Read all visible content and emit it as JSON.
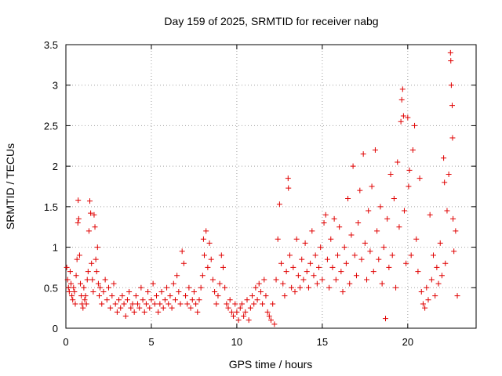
{
  "chart_data": {
    "type": "scatter",
    "title": "Day 159 of 2025, SRMTID for receiver nabg",
    "xlabel": "GPS time / hours",
    "ylabel": "SRMTID / TECUs",
    "xlim": [
      0,
      24
    ],
    "ylim": [
      0,
      3.5
    ],
    "xticks": [
      0,
      5,
      10,
      15,
      20
    ],
    "yticks": [
      0,
      0.5,
      1,
      1.5,
      2,
      2.5,
      3,
      3.5
    ],
    "xtick_labels": [
      "0",
      "5",
      "10",
      "15",
      "20"
    ],
    "ytick_labels": [
      "0",
      "0.5",
      "1",
      "1.5",
      "2",
      "2.5",
      "3",
      "3.5"
    ],
    "grid": true,
    "marker": "+",
    "series": [
      {
        "name": "SRMTID",
        "color": "#e00000",
        "points": [
          [
            0.05,
            0.75
          ],
          [
            0.1,
            0.6
          ],
          [
            0.15,
            0.5
          ],
          [
            0.2,
            0.45
          ],
          [
            0.25,
            0.7
          ],
          [
            0.3,
            0.55
          ],
          [
            0.35,
            0.4
          ],
          [
            0.4,
            0.35
          ],
          [
            0.45,
            0.5
          ],
          [
            0.5,
            0.45
          ],
          [
            0.55,
            0.3
          ],
          [
            0.6,
            0.65
          ],
          [
            0.65,
            0.85
          ],
          [
            0.7,
            1.3
          ],
          [
            0.72,
            1.58
          ],
          [
            0.75,
            1.35
          ],
          [
            0.8,
            0.9
          ],
          [
            0.85,
            0.55
          ],
          [
            0.9,
            0.4
          ],
          [
            0.95,
            0.3
          ],
          [
            1.0,
            0.25
          ],
          [
            1.05,
            0.5
          ],
          [
            1.1,
            0.35
          ],
          [
            1.15,
            0.4
          ],
          [
            1.2,
            0.3
          ],
          [
            1.25,
            0.6
          ],
          [
            1.3,
            0.7
          ],
          [
            1.35,
            1.2
          ],
          [
            1.4,
            1.57
          ],
          [
            1.45,
            1.42
          ],
          [
            1.5,
            0.8
          ],
          [
            1.55,
            0.6
          ],
          [
            1.6,
            0.45
          ],
          [
            1.65,
            1.4
          ],
          [
            1.7,
            1.25
          ],
          [
            1.75,
            0.85
          ],
          [
            1.8,
            0.7
          ],
          [
            1.85,
            1.0
          ],
          [
            1.9,
            0.55
          ],
          [
            1.95,
            0.4
          ],
          [
            2.0,
            0.5
          ],
          [
            2.1,
            0.3
          ],
          [
            2.2,
            0.45
          ],
          [
            2.3,
            0.6
          ],
          [
            2.4,
            0.35
          ],
          [
            2.5,
            0.5
          ],
          [
            2.6,
            0.25
          ],
          [
            2.7,
            0.4
          ],
          [
            2.8,
            0.55
          ],
          [
            2.9,
            0.3
          ],
          [
            3.0,
            0.2
          ],
          [
            3.1,
            0.35
          ],
          [
            3.2,
            0.25
          ],
          [
            3.3,
            0.4
          ],
          [
            3.4,
            0.3
          ],
          [
            3.5,
            0.15
          ],
          [
            3.6,
            0.35
          ],
          [
            3.7,
            0.45
          ],
          [
            3.8,
            0.25
          ],
          [
            3.9,
            0.3
          ],
          [
            4.0,
            0.2
          ],
          [
            4.1,
            0.4
          ],
          [
            4.2,
            0.3
          ],
          [
            4.3,
            0.25
          ],
          [
            4.4,
            0.5
          ],
          [
            4.5,
            0.35
          ],
          [
            4.6,
            0.2
          ],
          [
            4.7,
            0.3
          ],
          [
            4.8,
            0.45
          ],
          [
            4.9,
            0.25
          ],
          [
            5.0,
            0.35
          ],
          [
            5.1,
            0.55
          ],
          [
            5.2,
            0.3
          ],
          [
            5.3,
            0.4
          ],
          [
            5.4,
            0.2
          ],
          [
            5.5,
            0.3
          ],
          [
            5.6,
            0.45
          ],
          [
            5.7,
            0.25
          ],
          [
            5.8,
            0.35
          ],
          [
            5.9,
            0.5
          ],
          [
            6.0,
            0.3
          ],
          [
            6.1,
            0.4
          ],
          [
            6.2,
            0.25
          ],
          [
            6.3,
            0.55
          ],
          [
            6.4,
            0.35
          ],
          [
            6.5,
            0.65
          ],
          [
            6.6,
            0.45
          ],
          [
            6.7,
            0.3
          ],
          [
            6.8,
            0.95
          ],
          [
            6.9,
            0.8
          ],
          [
            7.0,
            0.4
          ],
          [
            7.1,
            0.3
          ],
          [
            7.2,
            0.5
          ],
          [
            7.3,
            0.25
          ],
          [
            7.4,
            0.35
          ],
          [
            7.5,
            0.45
          ],
          [
            7.6,
            0.3
          ],
          [
            7.7,
            0.2
          ],
          [
            7.8,
            0.35
          ],
          [
            7.9,
            0.5
          ],
          [
            8.0,
            0.65
          ],
          [
            8.05,
            1.1
          ],
          [
            8.1,
            0.9
          ],
          [
            8.2,
            1.2
          ],
          [
            8.3,
            0.75
          ],
          [
            8.4,
            1.05
          ],
          [
            8.5,
            0.85
          ],
          [
            8.6,
            0.6
          ],
          [
            8.7,
            0.45
          ],
          [
            8.8,
            0.3
          ],
          [
            8.9,
            0.4
          ],
          [
            9.0,
            0.55
          ],
          [
            9.1,
            0.9
          ],
          [
            9.2,
            0.75
          ],
          [
            9.3,
            0.5
          ],
          [
            9.4,
            0.3
          ],
          [
            9.5,
            0.25
          ],
          [
            9.6,
            0.35
          ],
          [
            9.7,
            0.2
          ],
          [
            9.8,
            0.15
          ],
          [
            9.9,
            0.3
          ],
          [
            10.0,
            0.2
          ],
          [
            10.1,
            0.1
          ],
          [
            10.2,
            0.25
          ],
          [
            10.3,
            0.3
          ],
          [
            10.4,
            0.15
          ],
          [
            10.5,
            0.2
          ],
          [
            10.6,
            0.35
          ],
          [
            10.7,
            0.1
          ],
          [
            10.8,
            0.25
          ],
          [
            10.9,
            0.4
          ],
          [
            11.0,
            0.3
          ],
          [
            11.1,
            0.5
          ],
          [
            11.2,
            0.35
          ],
          [
            11.3,
            0.55
          ],
          [
            11.4,
            0.45
          ],
          [
            11.5,
            0.3
          ],
          [
            11.6,
            0.6
          ],
          [
            11.7,
            0.4
          ],
          [
            11.8,
            0.2
          ],
          [
            11.9,
            0.15
          ],
          [
            12.0,
            0.1
          ],
          [
            12.1,
            0.3
          ],
          [
            12.2,
            0.05
          ],
          [
            12.3,
            0.6
          ],
          [
            12.4,
            1.1
          ],
          [
            12.5,
            1.53
          ],
          [
            12.6,
            0.8
          ],
          [
            12.7,
            0.55
          ],
          [
            12.8,
            0.4
          ],
          [
            12.9,
            0.7
          ],
          [
            13.0,
            1.85
          ],
          [
            13.02,
            1.73
          ],
          [
            13.1,
            0.9
          ],
          [
            13.2,
            0.5
          ],
          [
            13.3,
            0.75
          ],
          [
            13.4,
            0.45
          ],
          [
            13.5,
            1.1
          ],
          [
            13.6,
            0.65
          ],
          [
            13.7,
            0.5
          ],
          [
            13.8,
            0.85
          ],
          [
            13.9,
            0.6
          ],
          [
            14.0,
            1.05
          ],
          [
            14.1,
            0.7
          ],
          [
            14.2,
            0.5
          ],
          [
            14.3,
            0.8
          ],
          [
            14.4,
            1.2
          ],
          [
            14.5,
            0.65
          ],
          [
            14.6,
            0.9
          ],
          [
            14.7,
            0.55
          ],
          [
            14.8,
            0.75
          ],
          [
            14.9,
            1.0
          ],
          [
            15.0,
            0.6
          ],
          [
            15.1,
            1.3
          ],
          [
            15.2,
            1.4
          ],
          [
            15.3,
            0.85
          ],
          [
            15.4,
            0.5
          ],
          [
            15.5,
            1.1
          ],
          [
            15.6,
            0.75
          ],
          [
            15.7,
            1.35
          ],
          [
            15.8,
            0.6
          ],
          [
            15.9,
            0.9
          ],
          [
            16.0,
            1.25
          ],
          [
            16.1,
            0.7
          ],
          [
            16.2,
            0.45
          ],
          [
            16.3,
            1.0
          ],
          [
            16.4,
            0.8
          ],
          [
            16.5,
            1.6
          ],
          [
            16.6,
            0.55
          ],
          [
            16.7,
            1.15
          ],
          [
            16.8,
            2.0
          ],
          [
            16.9,
            0.9
          ],
          [
            17.0,
            0.65
          ],
          [
            17.1,
            1.3
          ],
          [
            17.2,
            1.7
          ],
          [
            17.3,
            0.85
          ],
          [
            17.4,
            2.15
          ],
          [
            17.5,
            1.05
          ],
          [
            17.6,
            0.6
          ],
          [
            17.7,
            1.45
          ],
          [
            17.8,
            0.95
          ],
          [
            17.9,
            1.75
          ],
          [
            18.0,
            0.7
          ],
          [
            18.1,
            2.2
          ],
          [
            18.2,
            1.2
          ],
          [
            18.3,
            0.85
          ],
          [
            18.4,
            1.5
          ],
          [
            18.5,
            0.55
          ],
          [
            18.6,
            1.0
          ],
          [
            18.7,
            0.12
          ],
          [
            18.8,
            1.35
          ],
          [
            18.9,
            0.75
          ],
          [
            19.0,
            1.9
          ],
          [
            19.1,
            0.9
          ],
          [
            19.2,
            1.6
          ],
          [
            19.3,
            0.5
          ],
          [
            19.4,
            2.05
          ],
          [
            19.5,
            1.25
          ],
          [
            19.6,
            2.55
          ],
          [
            19.65,
            2.82
          ],
          [
            19.7,
            2.95
          ],
          [
            19.75,
            2.62
          ],
          [
            19.8,
            1.45
          ],
          [
            19.9,
            0.8
          ],
          [
            20.0,
            2.6
          ],
          [
            20.05,
            1.75
          ],
          [
            20.1,
            1.95
          ],
          [
            20.2,
            0.9
          ],
          [
            20.3,
            2.2
          ],
          [
            20.4,
            2.5
          ],
          [
            20.5,
            1.1
          ],
          [
            20.6,
            0.7
          ],
          [
            20.7,
            1.85
          ],
          [
            20.8,
            0.45
          ],
          [
            20.9,
            0.3
          ],
          [
            21.0,
            0.25
          ],
          [
            21.1,
            0.5
          ],
          [
            21.2,
            0.35
          ],
          [
            21.3,
            1.4
          ],
          [
            21.4,
            0.6
          ],
          [
            21.5,
            0.9
          ],
          [
            21.6,
            0.4
          ],
          [
            21.7,
            0.75
          ],
          [
            21.8,
            0.55
          ],
          [
            21.9,
            1.05
          ],
          [
            22.0,
            0.65
          ],
          [
            22.1,
            2.1
          ],
          [
            22.15,
            1.8
          ],
          [
            22.2,
            0.8
          ],
          [
            22.3,
            1.45
          ],
          [
            22.4,
            1.9
          ],
          [
            22.5,
            3.4
          ],
          [
            22.52,
            3.3
          ],
          [
            22.55,
            3.0
          ],
          [
            22.6,
            2.75
          ],
          [
            22.62,
            2.35
          ],
          [
            22.65,
            1.35
          ],
          [
            22.7,
            0.95
          ],
          [
            22.8,
            1.2
          ],
          [
            22.9,
            0.4
          ]
        ]
      }
    ]
  }
}
